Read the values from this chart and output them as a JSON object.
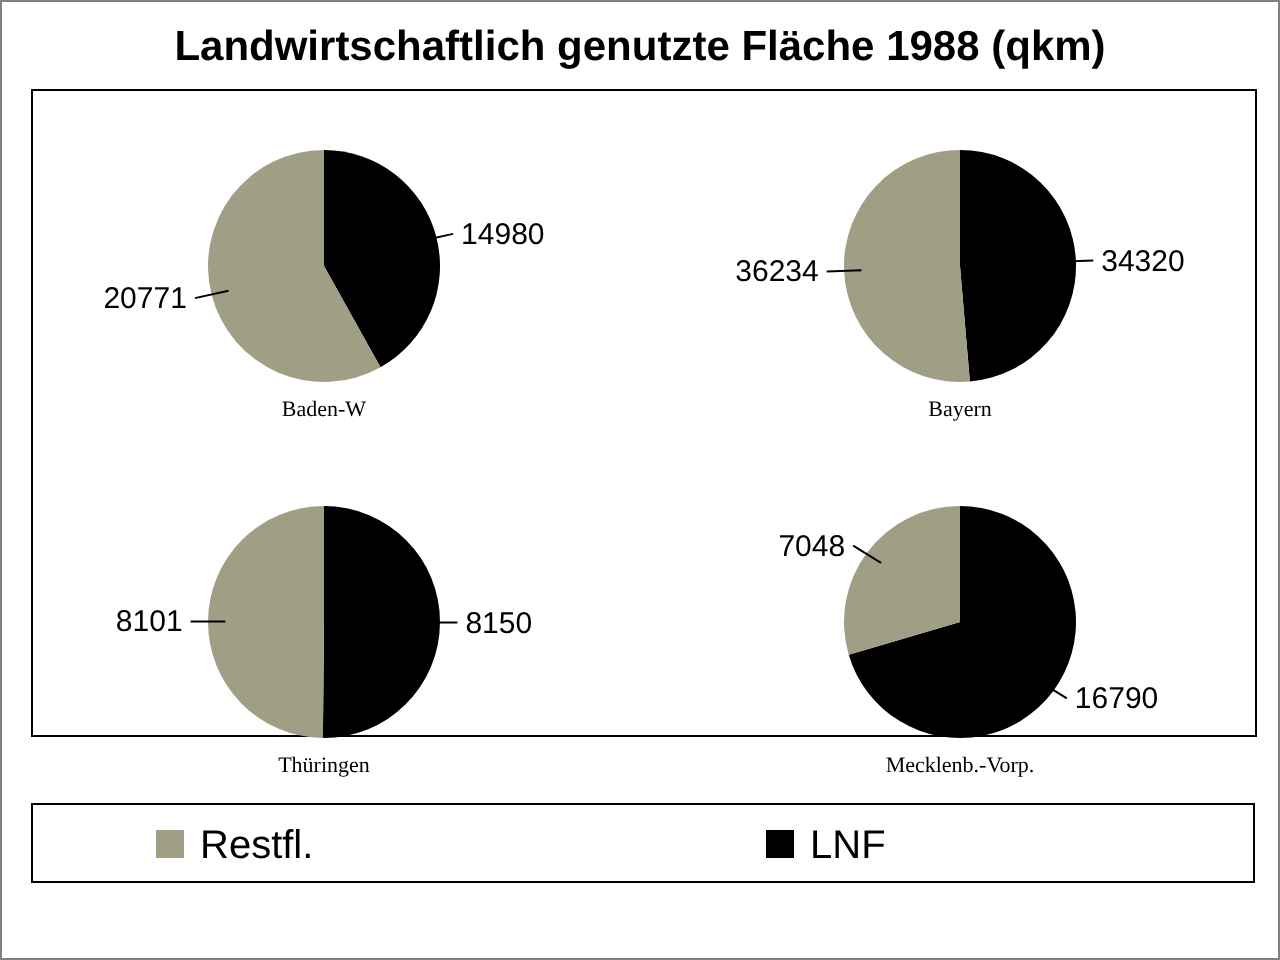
{
  "chart_data": [
    {
      "type": "pie",
      "title": "Baden-W",
      "annotations": [
        "Landwirtschaftlich genutzte Fläche 1988 (qkm)"
      ],
      "categories": [
        "LNF",
        "Restfl."
      ],
      "values": [
        14980,
        20771
      ],
      "colors": [
        "#000000",
        "#a09f86"
      ],
      "data_labels": true,
      "legend": "bottom"
    },
    {
      "type": "pie",
      "title": "Bayern",
      "categories": [
        null,
        null
      ],
      "values": [
        34320,
        36234
      ],
      "colors": [
        "#000000",
        "#a09f86"
      ],
      "data_labels": true
    },
    {
      "type": "pie",
      "title": "Thüringen",
      "categories": [
        null,
        null
      ],
      "values": [
        8150,
        8101
      ],
      "colors": [
        "#000000",
        "#a09f86"
      ],
      "data_labels": true
    },
    {
      "type": "pie",
      "title": "Mecklenb.-Vorp.",
      "categories": [
        null,
        null
      ],
      "values": [
        16790,
        7048
      ],
      "colors": [
        "#000000",
        "#a09f86"
      ],
      "data_labels": true
    }
  ]
}
